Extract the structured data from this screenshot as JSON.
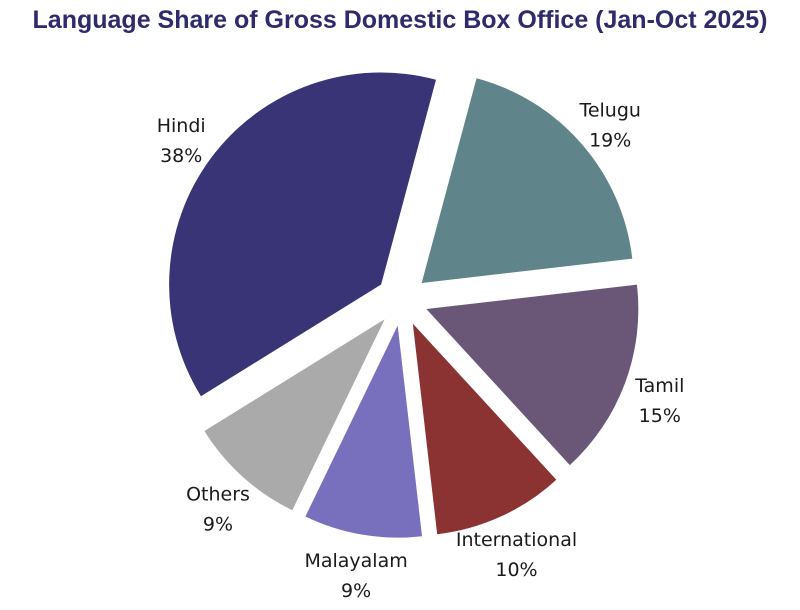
{
  "chart_data": {
    "type": "pie",
    "title": "Language Share of Gross Domestic Box Office (Jan-Oct 2025)",
    "exploded": true,
    "slices": [
      {
        "label": "Telugu",
        "value": 19,
        "display": "19%",
        "color": "#5f848a"
      },
      {
        "label": "Tamil",
        "value": 15,
        "display": "15%",
        "color": "#6a5778"
      },
      {
        "label": "International",
        "value": 10,
        "display": "10%",
        "color": "#8b3232"
      },
      {
        "label": "Malayalam",
        "value": 9,
        "display": "9%",
        "color": "#7870bc"
      },
      {
        "label": "Others",
        "value": 9,
        "display": "9%",
        "color": "#a9aaa9"
      },
      {
        "label": "Hindi",
        "value": 38,
        "display": "38%",
        "color": "#393476"
      }
    ]
  }
}
